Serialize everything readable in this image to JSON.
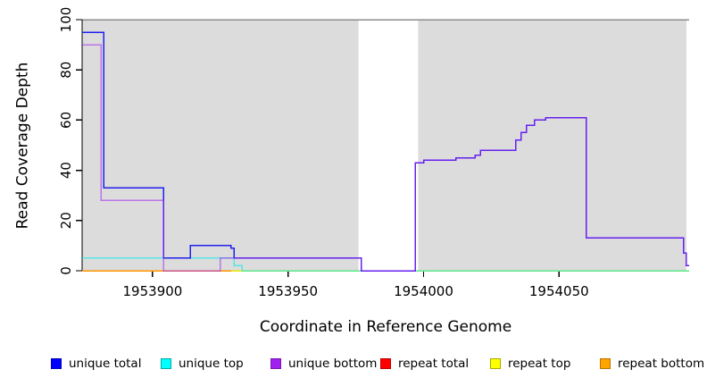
{
  "chart_data": {
    "type": "line",
    "step": "post",
    "title": "",
    "xlabel": "Coordinate in Reference Genome",
    "ylabel": "Read Coverage Depth",
    "xlim": [
      1953874,
      1954098
    ],
    "ylim": [
      0,
      100
    ],
    "x_ticks": [
      1953900,
      1953950,
      1954000,
      1954050
    ],
    "y_ticks": [
      0,
      20,
      40,
      60,
      80,
      100
    ],
    "grid": false,
    "legend_position": "bottom",
    "axis_color": "#000000",
    "top_border_color": "#8C8C8C",
    "background_regions": [
      {
        "x0": 1953874,
        "x1": 1953976,
        "color": "#DCDCDC"
      },
      {
        "x0": 1953998,
        "x1": 1954097,
        "color": "#DCDCDC"
      }
    ],
    "draw_order": [
      3,
      4,
      5,
      1,
      0,
      2
    ],
    "series": [
      {
        "name": "unique total",
        "color": "#2020EE",
        "opacity": 1,
        "points": [
          [
            1953874,
            95
          ],
          [
            1953882,
            33
          ],
          [
            1953904,
            5
          ],
          [
            1953914,
            10
          ],
          [
            1953929,
            9
          ],
          [
            1953930,
            5
          ],
          [
            1953977,
            0
          ],
          [
            1953997,
            43
          ],
          [
            1954000,
            44
          ],
          [
            1954012,
            45
          ],
          [
            1954019,
            46
          ],
          [
            1954021,
            48
          ],
          [
            1954034,
            52
          ],
          [
            1954036,
            55
          ],
          [
            1954038,
            58
          ],
          [
            1954041,
            60
          ],
          [
            1954045,
            61
          ],
          [
            1954060,
            13
          ],
          [
            1954096,
            7
          ],
          [
            1954097,
            2
          ],
          [
            1954098,
            2
          ]
        ]
      },
      {
        "name": "unique top",
        "color": "#00E8E8",
        "opacity": 0.6,
        "points": [
          [
            1953874,
            5
          ],
          [
            1953930,
            2
          ],
          [
            1953933,
            0
          ],
          [
            1954098,
            0
          ]
        ]
      },
      {
        "name": "unique bottom",
        "color": "#A020F0",
        "opacity": 0.55,
        "points": [
          [
            1953874,
            90
          ],
          [
            1953881,
            28
          ],
          [
            1953904,
            0
          ],
          [
            1953925,
            5
          ],
          [
            1953977,
            0
          ],
          [
            1953997,
            43
          ],
          [
            1954000,
            44
          ],
          [
            1954012,
            45
          ],
          [
            1954019,
            46
          ],
          [
            1954021,
            48
          ],
          [
            1954034,
            52
          ],
          [
            1954036,
            55
          ],
          [
            1954038,
            58
          ],
          [
            1954041,
            60
          ],
          [
            1954045,
            61
          ],
          [
            1954060,
            13
          ],
          [
            1954096,
            7
          ],
          [
            1954097,
            2
          ],
          [
            1954098,
            2
          ]
        ]
      },
      {
        "name": "repeat total",
        "color": "#DD0000",
        "opacity": 1,
        "points": [
          [
            1953874,
            0
          ],
          [
            1954098,
            0
          ]
        ]
      },
      {
        "name": "repeat top",
        "color": "#E8E800",
        "opacity": 1,
        "points": [
          [
            1953874,
            0
          ],
          [
            1954098,
            0
          ]
        ]
      },
      {
        "name": "repeat bottom",
        "color": "#FF9500",
        "opacity": 1,
        "points": [
          [
            1953874,
            0
          ],
          [
            1953929,
            0
          ]
        ]
      }
    ],
    "legend": [
      {
        "label": "unique total",
        "fill": "#0000FF",
        "border": "#0000B8"
      },
      {
        "label": "unique top",
        "fill": "#00FFFF",
        "border": "#00A8A8"
      },
      {
        "label": "unique bottom",
        "fill": "#A020F0",
        "border": "#7718B0"
      },
      {
        "label": "repeat total",
        "fill": "#FF0000",
        "border": "#B80000"
      },
      {
        "label": "repeat top",
        "fill": "#FFFF00",
        "border": "#A8A800"
      },
      {
        "label": "repeat bottom",
        "fill": "#FFA500",
        "border": "#B87400"
      }
    ]
  }
}
